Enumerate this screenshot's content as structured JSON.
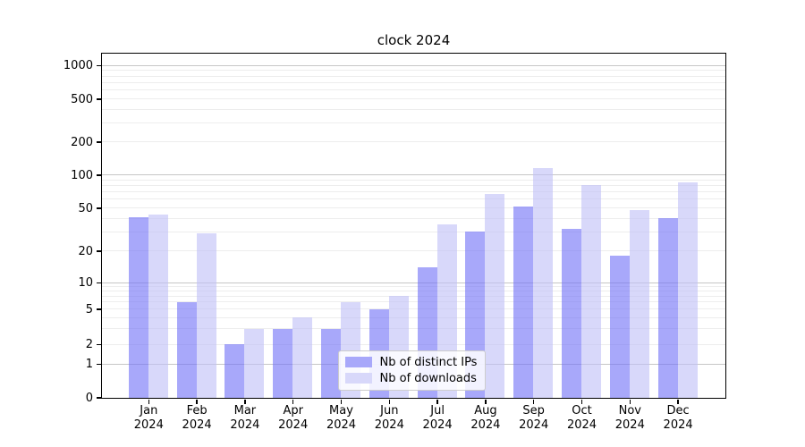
{
  "chart_data": {
    "type": "bar",
    "title": "clock 2024",
    "categories": [
      "Jan",
      "Feb",
      "Mar",
      "Apr",
      "May",
      "Jun",
      "Jul",
      "Aug",
      "Sep",
      "Oct",
      "Nov",
      "Dec"
    ],
    "x_year": "2024",
    "series": [
      {
        "name": "Nb of distinct IPs",
        "color": "#a8a8fa",
        "values": [
          41,
          6,
          2,
          3,
          3,
          5,
          14,
          30,
          51,
          32,
          18,
          40
        ]
      },
      {
        "name": "Nb of downloads",
        "color": "#d8d8fa",
        "values": [
          43,
          29,
          3,
          4,
          6,
          7,
          35,
          67,
          116,
          80,
          48,
          85
        ]
      }
    ],
    "y_axis": {
      "scale": "symlog",
      "ticks": [
        0,
        1,
        2,
        5,
        10,
        20,
        50,
        100,
        200,
        500,
        1000
      ]
    },
    "grid": true,
    "legend": {
      "position": "lower center"
    }
  }
}
